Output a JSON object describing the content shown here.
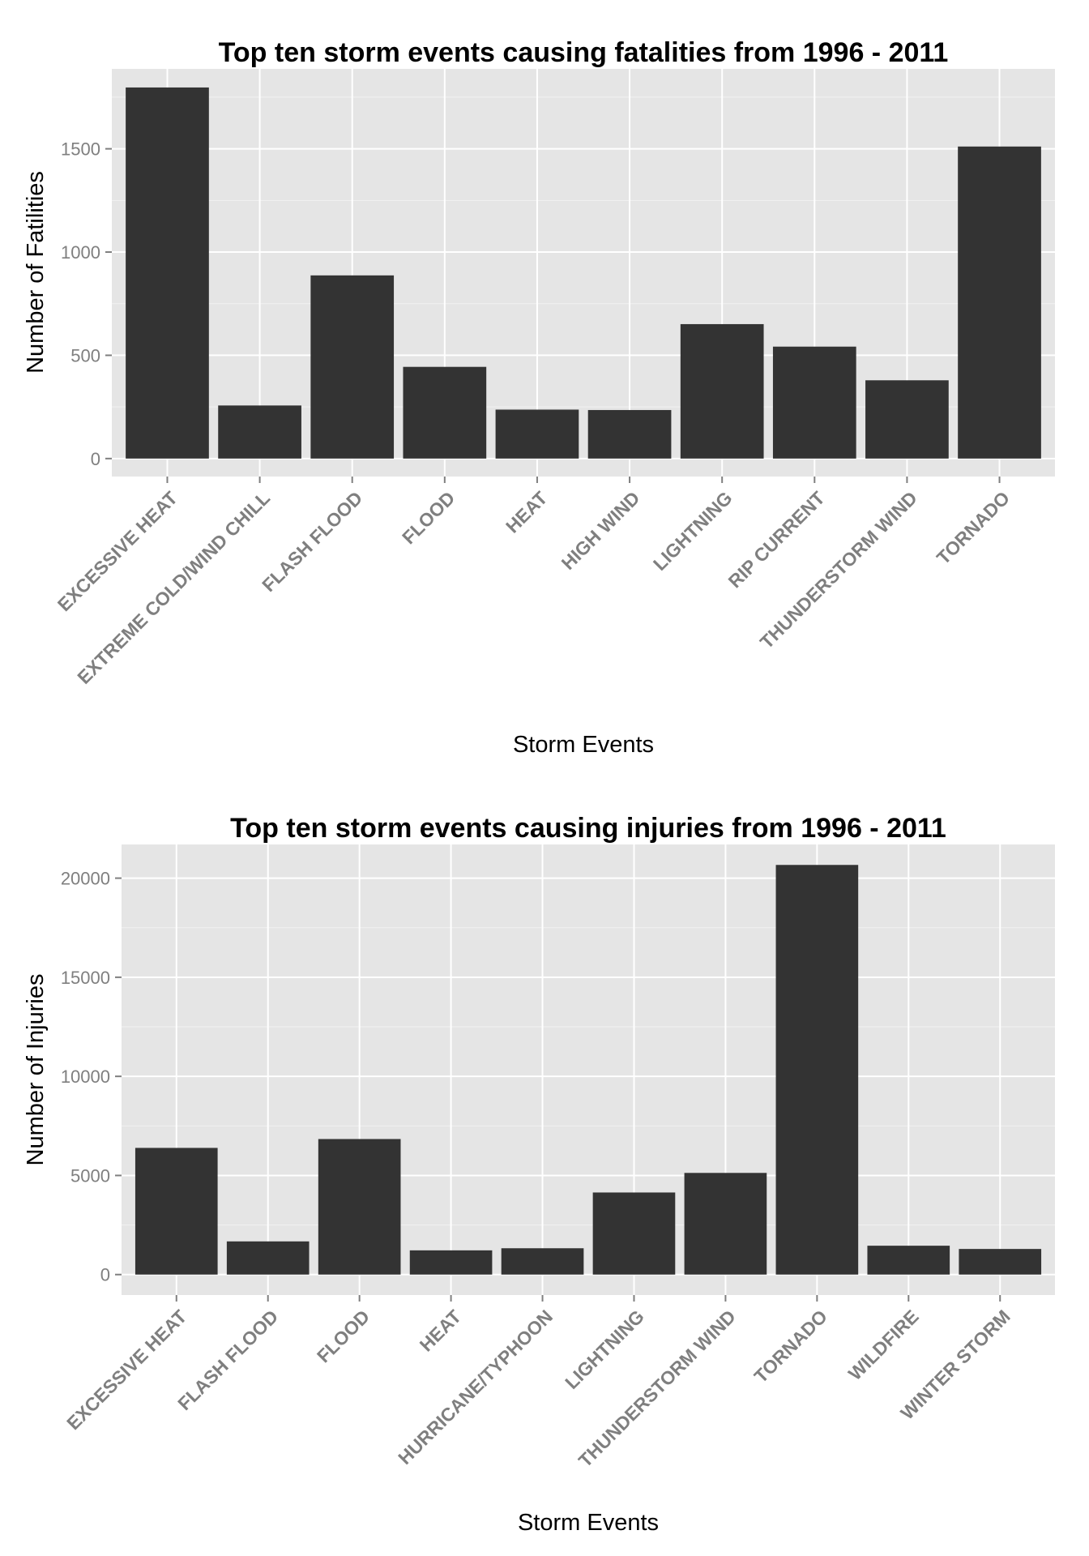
{
  "colors": {
    "panel_background": "#e5e5e5",
    "grid_major": "#ffffff",
    "grid_minor": "#f2f2f2",
    "bar_fill": "#333333",
    "tick_text": "#7f7f7f",
    "tick_mark": "#7f7f7f",
    "title_text": "#000000"
  },
  "chart_data": [
    {
      "type": "bar",
      "title": "Top ten storm events causing fatalities from 1996 - 2011",
      "xlabel": "Storm Events",
      "ylabel": "Number of Fatilities",
      "categories": [
        "EXCESSIVE HEAT",
        "EXTREME COLD/WIND CHILL",
        "FLASH FLOOD",
        "FLOOD",
        "HEAT",
        "HIGH WIND",
        "LIGHTNING",
        "RIP CURRENT",
        "THUNDERSTORM WIND",
        "TORNADO"
      ],
      "values": [
        1797,
        257,
        887,
        444,
        237,
        235,
        651,
        542,
        379,
        1511
      ],
      "ylim": [
        -87,
        1887
      ],
      "yticks": [
        0,
        500,
        1000,
        1500
      ],
      "ytick_labels": [
        "0",
        "500",
        "1000",
        "1500"
      ],
      "grid": true,
      "legend": "none"
    },
    {
      "type": "bar",
      "title": "Top ten storm events causing injuries from 1996 - 2011",
      "xlabel": "Storm Events",
      "ylabel": "Number of Injuries",
      "categories": [
        "EXCESSIVE HEAT",
        "FLASH FLOOD",
        "FLOOD",
        "HEAT",
        "HURRICANE/TYPHOON",
        "LIGHTNING",
        "THUNDERSTORM WIND",
        "TORNADO",
        "WILDFIRE",
        "WINTER STORM"
      ],
      "values": [
        6391,
        1674,
        6838,
        1222,
        1328,
        4141,
        5129,
        20667,
        1456,
        1292
      ],
      "ylim": [
        -1033,
        21700
      ],
      "yticks": [
        0,
        5000,
        10000,
        15000,
        20000
      ],
      "ytick_labels": [
        "0",
        "5000",
        "10000",
        "15000",
        "20000"
      ],
      "grid": true,
      "legend": "none"
    }
  ]
}
